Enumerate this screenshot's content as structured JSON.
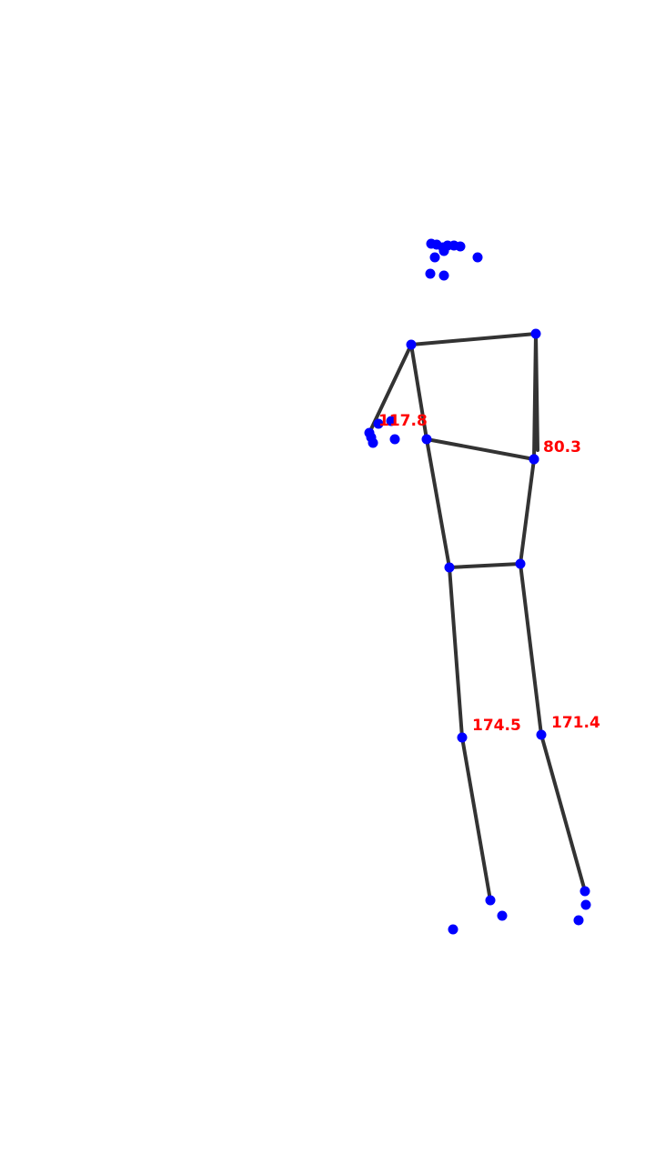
{
  "colors": {
    "background": "#ffffff",
    "bone": "#333333",
    "keypoint": "#0000ff",
    "angle_label": "#ff0000"
  },
  "angles": {
    "left_elbow": "117.8",
    "right_elbow": "80.3",
    "left_knee": "174.5",
    "right_knee": "171.4"
  }
}
